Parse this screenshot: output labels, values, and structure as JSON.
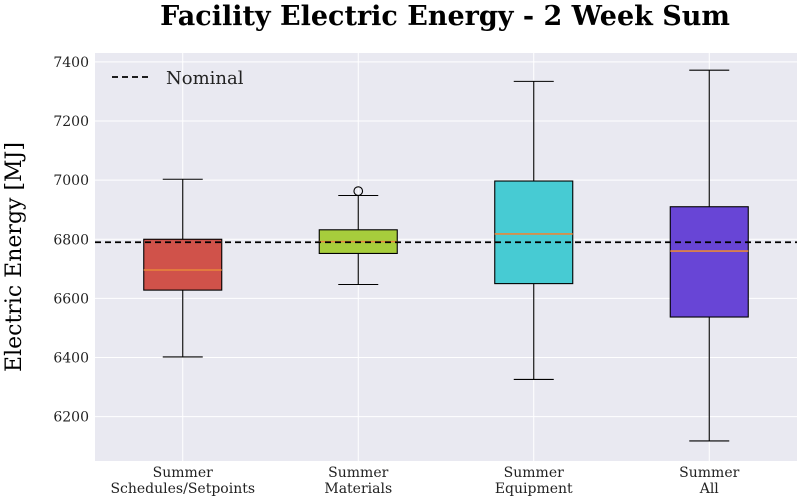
{
  "chart_data": {
    "type": "box",
    "title": "Facility Electric Energy - 2 Week Sum",
    "xlabel": "",
    "ylabel": "Electric Energy [MJ]",
    "ylim": [
      6050,
      7430
    ],
    "yticks": [
      6200,
      6400,
      6600,
      6800,
      7000,
      7200,
      7400
    ],
    "grid": true,
    "legend": {
      "placement": "top-left",
      "entries": [
        "Nominal"
      ]
    },
    "reference_line": {
      "name": "Nominal",
      "value": 6790,
      "color": "#000000",
      "style": "dashed"
    },
    "categories": [
      [
        "Summer",
        "Schedules/Setpoints"
      ],
      [
        "Summer",
        "Materials"
      ],
      [
        "Summer",
        "Equipment"
      ],
      [
        "Summer",
        "All"
      ]
    ],
    "boxes": [
      {
        "whisker_low": 6402,
        "q1": 6628,
        "median": 6696,
        "q3": 6800,
        "whisker_high": 7003,
        "outliers": [],
        "color": "#d0524a"
      },
      {
        "whisker_low": 6647,
        "q1": 6752,
        "median": 6792,
        "q3": 6832,
        "whisker_high": 6948,
        "outliers": [
          6963
        ],
        "color": "#a7cd3c"
      },
      {
        "whisker_low": 6326,
        "q1": 6650,
        "median": 6818,
        "q3": 6997,
        "whisker_high": 7334,
        "outliers": [],
        "color": "#47cbd3"
      },
      {
        "whisker_low": 6118,
        "q1": 6537,
        "median": 6760,
        "q3": 6910,
        "whisker_high": 7372,
        "outliers": [],
        "color": "#6845d6"
      }
    ],
    "median_color": "#e8873a",
    "plot_background": "#e9e9f1",
    "grid_color": "#ffffff"
  }
}
